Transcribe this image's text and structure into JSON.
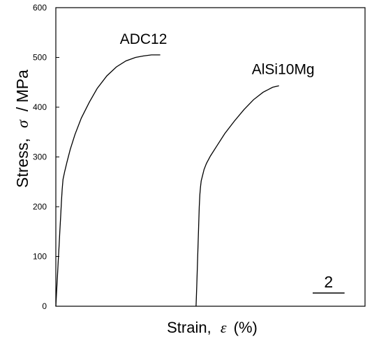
{
  "chart_data": {
    "type": "line",
    "title": "",
    "xlabel": "Strain,",
    "xlabel_symbol": "ε",
    "xlabel_unit": "(%)",
    "ylabel": "Stress,",
    "ylabel_symbol": "σ",
    "ylabel_unit": "/ MPa",
    "ylim": [
      0,
      600
    ],
    "yticks": [
      0,
      100,
      200,
      300,
      400,
      500,
      600
    ],
    "xlim": [
      0,
      19.4
    ],
    "x_tick_labels": false,
    "grid": false,
    "scale_bar": {
      "label": "2",
      "length": 2
    },
    "series": [
      {
        "name": "ADC12",
        "x": [
          0.0,
          0.05,
          0.1,
          0.15,
          0.2,
          0.25,
          0.3,
          0.35,
          0.4,
          0.45,
          0.55,
          0.7,
          0.9,
          1.2,
          1.6,
          2.1,
          2.6,
          3.2,
          3.8,
          4.4,
          5.0,
          5.5,
          6.0,
          6.55
        ],
        "y": [
          0,
          30,
          60,
          90,
          120,
          150,
          180,
          210,
          235,
          255,
          270,
          290,
          315,
          345,
          378,
          410,
          438,
          463,
          481,
          493,
          500,
          503,
          505,
          505
        ]
      },
      {
        "name": "AlSi10Mg",
        "x": [
          8.8,
          8.84,
          8.88,
          8.92,
          8.96,
          9.0,
          9.04,
          9.08,
          9.12,
          9.2,
          9.3,
          9.45,
          9.7,
          10.1,
          10.6,
          11.2,
          11.8,
          12.4,
          13.0,
          13.6,
          14.0
        ],
        "y": [
          0,
          40,
          80,
          120,
          160,
          200,
          225,
          240,
          252,
          262,
          275,
          287,
          302,
          322,
          347,
          372,
          395,
          415,
          430,
          440,
          443
        ]
      }
    ]
  }
}
